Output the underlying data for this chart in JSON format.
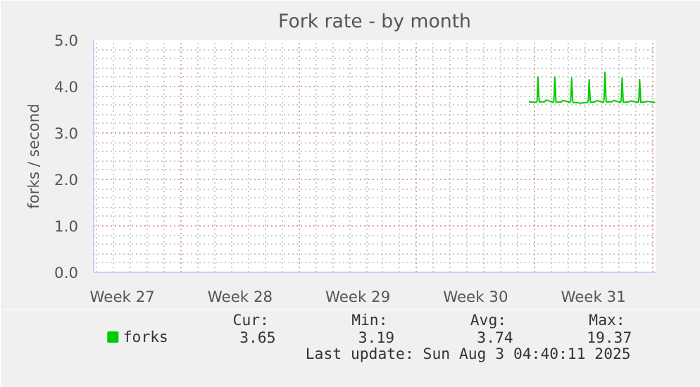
{
  "chart_data": {
    "type": "line",
    "title": "Fork rate - by month",
    "ylabel": "forks / second",
    "xlim": [
      "2025-07-01T19:12",
      "2025-08-04T04:48"
    ],
    "ylim": [
      0,
      5
    ],
    "xticks": [
      {
        "value": "2025-07-03T12:00",
        "label": "Week 27"
      },
      {
        "value": "2025-07-10T12:00",
        "label": "Week 28"
      },
      {
        "value": "2025-07-17T12:00",
        "label": "Week 29"
      },
      {
        "value": "2025-07-24T12:00",
        "label": "Week 30"
      },
      {
        "value": "2025-07-31T12:00",
        "label": "Week 31"
      },
      {
        "value": "2025-07-07",
        "label": null
      },
      {
        "value": "2025-07-14",
        "label": null
      },
      {
        "value": "2025-07-21",
        "label": null
      },
      {
        "value": "2025-07-28",
        "label": null
      },
      {
        "value": "2025-08-04",
        "label": null
      }
    ],
    "yticks": [
      {
        "value": 0,
        "label": "0.0"
      },
      {
        "value": 1,
        "label": "1.0"
      },
      {
        "value": 2,
        "label": "2.0"
      },
      {
        "value": 3,
        "label": "3.0"
      },
      {
        "value": 4,
        "label": "4.0"
      },
      {
        "value": 5,
        "label": "5.0"
      }
    ],
    "grid": true,
    "legend": "bottom left",
    "marker": "none",
    "line_style": "solid",
    "series": [
      {
        "name": "forks",
        "color": "#00cc00",
        "x": [
          "2025-07-27T16:00",
          "2025-07-28T02:35",
          "2025-07-28T03:45",
          "2025-07-28T05:00",
          "2025-07-28T06:40",
          "2025-07-28T14:24",
          "2025-07-28T16:48",
          "2025-07-29T02:35",
          "2025-07-29T03:45",
          "2025-07-29T05:00",
          "2025-07-29T06:40",
          "2025-07-29T14:24",
          "2025-07-29T16:48",
          "2025-07-30T02:35",
          "2025-07-30T03:45",
          "2025-07-30T05:00",
          "2025-07-30T06:40",
          "2025-07-30T14:24",
          "2025-07-30T16:48",
          "2025-07-31T03:35",
          "2025-07-31T04:45",
          "2025-07-31T06:00",
          "2025-07-31T07:40",
          "2025-07-31T14:24",
          "2025-07-31T16:48",
          "2025-08-01T02:05",
          "2025-08-01T03:15",
          "2025-08-01T04:30",
          "2025-08-01T06:10",
          "2025-08-01T14:24",
          "2025-08-01T16:48",
          "2025-08-02T02:35",
          "2025-08-02T03:45",
          "2025-08-02T05:00",
          "2025-08-02T06:40",
          "2025-08-02T14:24",
          "2025-08-02T16:48",
          "2025-08-03T03:35",
          "2025-08-03T04:45",
          "2025-08-03T06:00",
          "2025-08-03T07:40",
          "2025-08-03T14:24",
          "2025-08-03T16:48",
          "2025-08-04T04:00"
        ],
        "values": [
          3.67,
          3.66,
          3.7,
          4.2,
          3.67,
          3.67,
          3.71,
          3.66,
          3.7,
          4.2,
          3.66,
          3.67,
          3.7,
          3.66,
          3.7,
          4.18,
          3.66,
          3.65,
          3.64,
          3.66,
          3.7,
          4.15,
          3.66,
          3.67,
          3.7,
          3.66,
          3.72,
          4.31,
          3.67,
          3.67,
          3.7,
          3.66,
          3.7,
          4.18,
          3.66,
          3.67,
          3.69,
          3.66,
          3.7,
          4.15,
          3.66,
          3.67,
          3.68,
          3.66
        ]
      }
    ],
    "annotations": [
      "Cur:",
      "Min:",
      "Avg:",
      "Max:",
      "3.65",
      "3.19",
      "3.74",
      "19.37",
      "Last update: Sun Aug  3 04:40:11 2025"
    ]
  }
}
